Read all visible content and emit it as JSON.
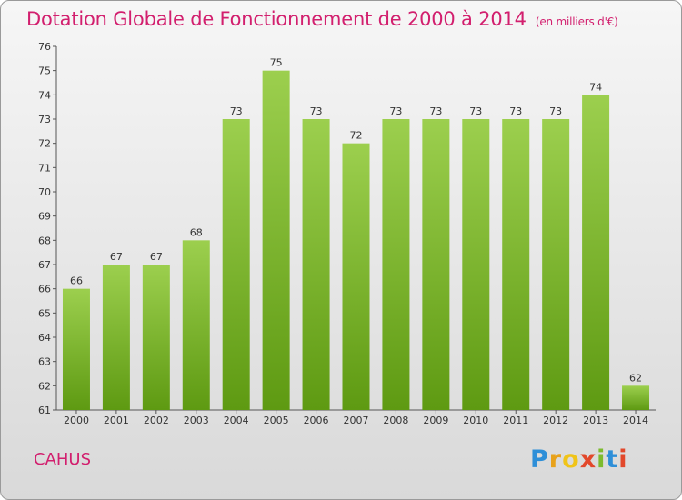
{
  "chart_data": {
    "type": "bar",
    "title": "Dotation Globale de Fonctionnement de 2000 à 2014",
    "unit_note": "(en milliers d'€)",
    "categories": [
      "2000",
      "2001",
      "2002",
      "2003",
      "2004",
      "2005",
      "2006",
      "2007",
      "2008",
      "2009",
      "2010",
      "2011",
      "2012",
      "2013",
      "2014"
    ],
    "values": [
      66,
      67,
      67,
      68,
      73,
      75,
      73,
      72,
      73,
      73,
      73,
      73,
      73,
      74,
      62
    ],
    "ylim": [
      61,
      76
    ],
    "yticks": [
      61,
      62,
      63,
      64,
      65,
      66,
      67,
      68,
      69,
      70,
      71,
      72,
      73,
      74,
      75,
      76
    ],
    "xlabel": "",
    "ylabel": "",
    "grid": false,
    "bar_color_top": "#9ccf4e",
    "bar_color_bottom": "#5e9a12"
  },
  "commune": "CAHUS",
  "logo": {
    "letters": [
      "P",
      "r",
      "o",
      "x",
      "i",
      "t",
      "i"
    ]
  }
}
